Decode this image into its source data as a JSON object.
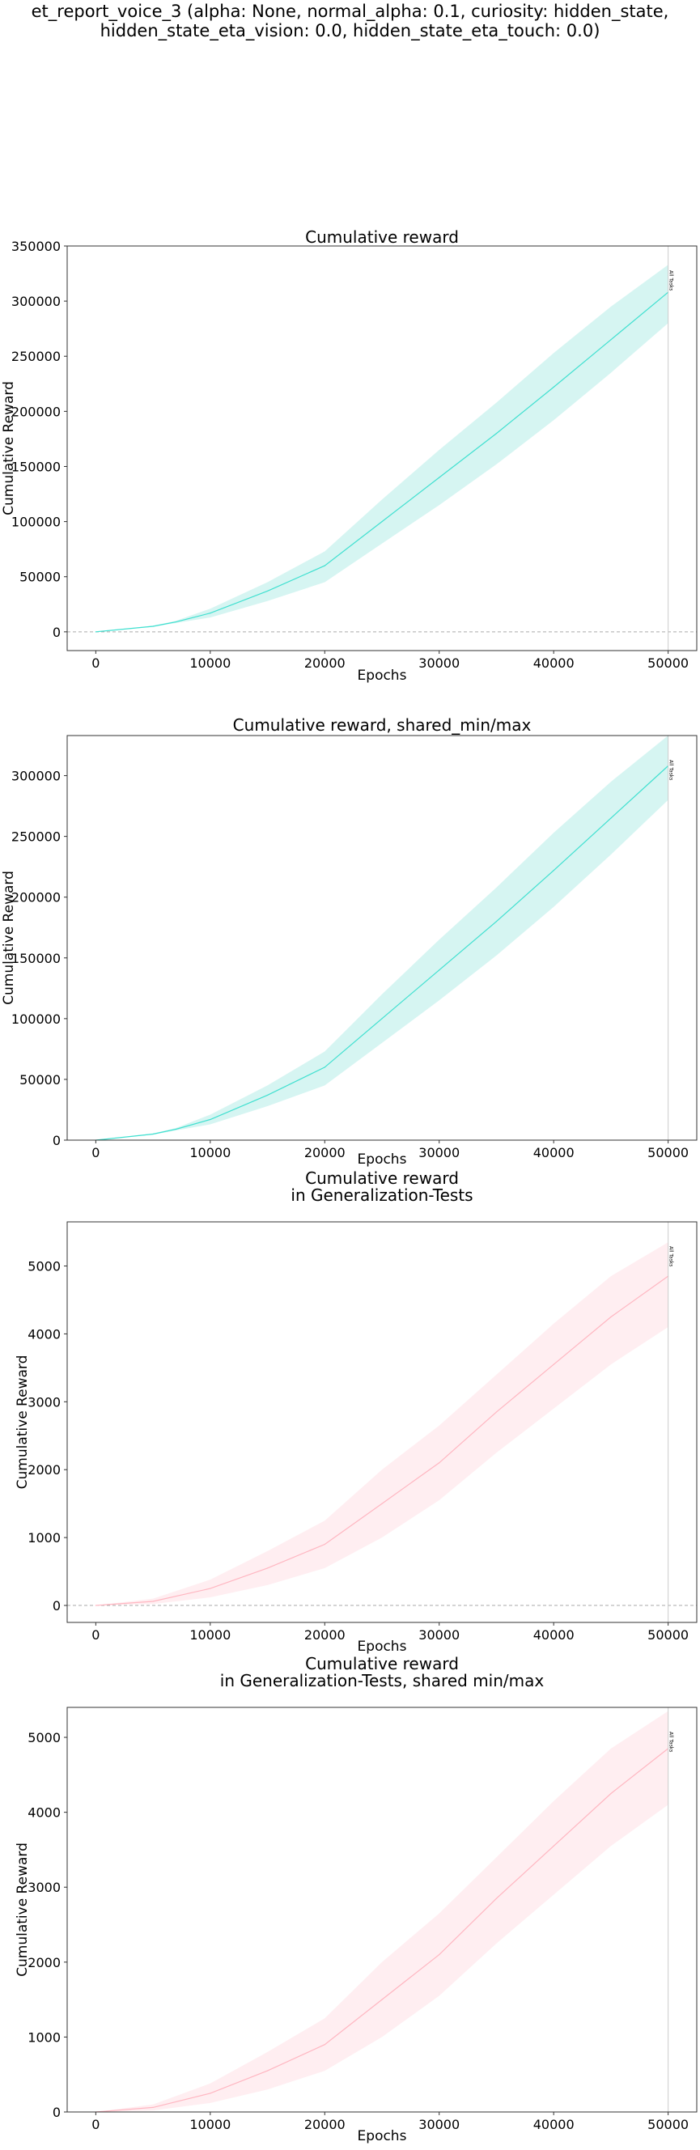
{
  "figure": {
    "suptitle": "et_report_voice_3 (alpha: None, normal_alpha: 0.1, curiosity: hidden_state,\nhidden_state_eta_vision: 0.0, hidden_state_eta_touch: 0.0)"
  },
  "colors": {
    "cyan": "#40e0d0",
    "cyan_band": "#d6f5f2",
    "pink": "#ffb6c1",
    "pink_band": "#ffeef1"
  },
  "chart_data": [
    {
      "type": "area",
      "title": "Cumulative reward",
      "xlabel": "Epochs",
      "ylabel": "Cumulative Reward",
      "xlim": [
        -2500,
        52500
      ],
      "ylim": [
        -17000,
        350000
      ],
      "xticks": [
        0,
        10000,
        20000,
        30000,
        40000,
        50000
      ],
      "yticks": [
        0,
        50000,
        100000,
        150000,
        200000,
        250000,
        300000,
        350000
      ],
      "zero_line": true,
      "grid": false,
      "vline": {
        "x": 50000,
        "label": "All Tasks"
      },
      "color": "#40e0d0",
      "band_color": "#d6f5f2",
      "x": [
        0,
        5000,
        7000,
        10000,
        15000,
        20000,
        25000,
        30000,
        35000,
        40000,
        45000,
        50000
      ],
      "mean": [
        0,
        5000,
        9000,
        17000,
        37000,
        60000,
        100000,
        140000,
        180000,
        222000,
        265000,
        308000
      ],
      "lower": [
        0,
        4500,
        8000,
        13000,
        28000,
        45000,
        80000,
        115000,
        152000,
        192000,
        235000,
        280000
      ],
      "upper": [
        0,
        5500,
        10000,
        21000,
        45000,
        73000,
        120000,
        165000,
        208000,
        253000,
        295000,
        333000
      ]
    },
    {
      "type": "area",
      "title": "Cumulative reward, shared_min/max",
      "xlabel": "Epochs",
      "ylabel": "Cumulative Reward",
      "xlim": [
        -2500,
        52500
      ],
      "ylim": [
        0,
        333000
      ],
      "xticks": [
        0,
        10000,
        20000,
        30000,
        40000,
        50000
      ],
      "yticks": [
        0,
        50000,
        100000,
        150000,
        200000,
        250000,
        300000
      ],
      "zero_line": false,
      "grid": false,
      "vline": {
        "x": 50000,
        "label": "All Tasks"
      },
      "color": "#40e0d0",
      "band_color": "#d6f5f2",
      "x": [
        0,
        5000,
        7000,
        10000,
        15000,
        20000,
        25000,
        30000,
        35000,
        40000,
        45000,
        50000
      ],
      "mean": [
        0,
        5000,
        9000,
        17000,
        37000,
        60000,
        100000,
        140000,
        180000,
        222000,
        265000,
        308000
      ],
      "lower": [
        0,
        4500,
        8000,
        13000,
        28000,
        45000,
        80000,
        115000,
        152000,
        192000,
        235000,
        280000
      ],
      "upper": [
        0,
        5500,
        10000,
        21000,
        45000,
        73000,
        120000,
        165000,
        208000,
        253000,
        295000,
        333000
      ]
    },
    {
      "type": "area",
      "title": "Cumulative reward\nin Generalization-Tests",
      "xlabel": "Epochs",
      "ylabel": "Cumulative Reward",
      "xlim": [
        -2500,
        52500
      ],
      "ylim": [
        -250,
        5650
      ],
      "xticks": [
        0,
        10000,
        20000,
        30000,
        40000,
        50000
      ],
      "yticks": [
        0,
        1000,
        2000,
        3000,
        4000,
        5000
      ],
      "zero_line": true,
      "grid": false,
      "vline": {
        "x": 50000,
        "label": "All Tasks"
      },
      "color": "#ffb6c1",
      "band_color": "#ffeef1",
      "x": [
        0,
        5000,
        10000,
        15000,
        20000,
        25000,
        30000,
        35000,
        40000,
        45000,
        50000
      ],
      "mean": [
        0,
        60,
        250,
        550,
        900,
        1500,
        2100,
        2850,
        3550,
        4250,
        4850
      ],
      "lower": [
        0,
        20,
        120,
        300,
        550,
        1000,
        1550,
        2250,
        2900,
        3550,
        4100
      ],
      "upper": [
        0,
        100,
        380,
        800,
        1250,
        2000,
        2650,
        3400,
        4150,
        4850,
        5350
      ]
    },
    {
      "type": "area",
      "title": "Cumulative reward\nin Generalization-Tests, shared min/max",
      "xlabel": "Epochs",
      "ylabel": "Cumulative Reward",
      "xlim": [
        -2500,
        52500
      ],
      "ylim": [
        0,
        5400
      ],
      "xticks": [
        0,
        10000,
        20000,
        30000,
        40000,
        50000
      ],
      "yticks": [
        0,
        1000,
        2000,
        3000,
        4000,
        5000
      ],
      "zero_line": false,
      "grid": false,
      "vline": {
        "x": 50000,
        "label": "All Tasks"
      },
      "color": "#ffb6c1",
      "band_color": "#ffeef1",
      "x": [
        0,
        5000,
        10000,
        15000,
        20000,
        25000,
        30000,
        35000,
        40000,
        45000,
        50000
      ],
      "mean": [
        0,
        60,
        250,
        550,
        900,
        1500,
        2100,
        2850,
        3550,
        4250,
        4850
      ],
      "lower": [
        0,
        20,
        120,
        300,
        550,
        1000,
        1550,
        2250,
        2900,
        3550,
        4100
      ],
      "upper": [
        0,
        100,
        380,
        800,
        1250,
        2000,
        2650,
        3400,
        4150,
        4850,
        5350
      ]
    }
  ]
}
